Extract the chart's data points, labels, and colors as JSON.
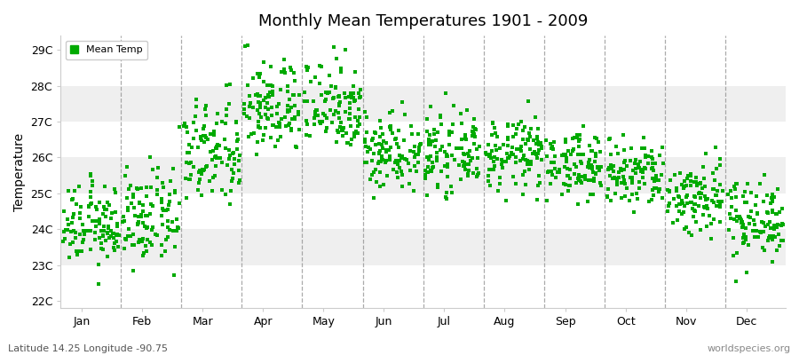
{
  "title": "Monthly Mean Temperatures 1901 - 2009",
  "ylabel": "Temperature",
  "xlabel": "",
  "subtitle_left": "Latitude 14.25 Longitude -90.75",
  "subtitle_right": "worldspecies.org",
  "legend_label": "Mean Temp",
  "dot_color": "#00AA00",
  "background_color": "#ffffff",
  "hband_colors": [
    "#ffffff",
    "#efefef"
  ],
  "yticks": [
    22,
    23,
    24,
    25,
    26,
    27,
    28,
    29
  ],
  "ytick_labels": [
    "22C",
    "23C",
    "24C",
    "25C",
    "26C",
    "27C",
    "28C",
    "29C"
  ],
  "ylim": [
    21.8,
    29.4
  ],
  "months": [
    "Jan",
    "Feb",
    "Mar",
    "Apr",
    "May",
    "Jun",
    "Jul",
    "Aug",
    "Sep",
    "Oct",
    "Nov",
    "Dec"
  ],
  "n_years": 109,
  "monthly_means": [
    24.1,
    24.3,
    26.1,
    27.4,
    27.5,
    26.2,
    26.1,
    26.1,
    25.8,
    25.5,
    24.9,
    24.3
  ],
  "monthly_stds": [
    0.55,
    0.65,
    0.75,
    0.65,
    0.65,
    0.55,
    0.5,
    0.5,
    0.45,
    0.5,
    0.55,
    0.55
  ]
}
